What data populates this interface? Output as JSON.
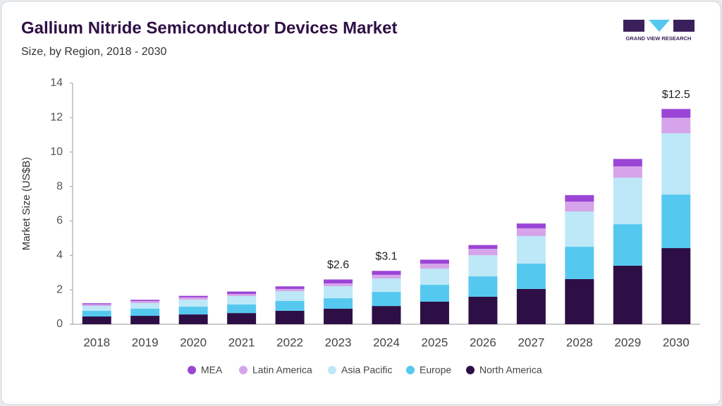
{
  "chart_data": {
    "type": "stacked_bar",
    "title": "Gallium Nitride Semiconductor Devices Market",
    "subtitle": "Size, by Region, 2018 - 2030",
    "y_label": "Market Size (US$B)",
    "logo_text": "GRAND VIEW RESEARCH",
    "categories": [
      "2018",
      "2019",
      "2020",
      "2021",
      "2022",
      "2023",
      "2024",
      "2025",
      "2026",
      "2027",
      "2028",
      "2029",
      "2030"
    ],
    "series": [
      {
        "name": "North America",
        "color": "#2e0f45",
        "values": [
          0.45,
          0.49,
          0.57,
          0.65,
          0.78,
          0.9,
          1.06,
          1.31,
          1.6,
          2.05,
          2.62,
          3.4,
          4.42
        ]
      },
      {
        "name": "Europe",
        "color": "#55c8f0",
        "values": [
          0.33,
          0.41,
          0.45,
          0.5,
          0.57,
          0.61,
          0.82,
          0.98,
          1.18,
          1.47,
          1.88,
          2.41,
          3.11
        ]
      },
      {
        "name": "Asia Pacific",
        "color": "#bde8f7",
        "values": [
          0.28,
          0.33,
          0.41,
          0.49,
          0.57,
          0.7,
          0.78,
          0.94,
          1.23,
          1.6,
          2.05,
          2.7,
          3.56
        ]
      },
      {
        "name": "Latin America",
        "color": "#d6a4ea",
        "values": [
          0.1,
          0.12,
          0.13,
          0.12,
          0.13,
          0.16,
          0.21,
          0.29,
          0.37,
          0.45,
          0.57,
          0.66,
          0.9
        ]
      },
      {
        "name": "MEA",
        "color": "#9b45d6",
        "values": [
          0.06,
          0.07,
          0.09,
          0.14,
          0.15,
          0.23,
          0.23,
          0.23,
          0.22,
          0.28,
          0.38,
          0.43,
          0.51
        ]
      }
    ],
    "annotations": [
      {
        "category": "2023",
        "value": 2.6,
        "label": "$2.6"
      },
      {
        "category": "2024",
        "value": 3.1,
        "label": "$3.1"
      },
      {
        "category": "2030",
        "value": 12.5,
        "label": "$12.5"
      }
    ],
    "ylim": [
      0,
      14
    ],
    "yticks": [
      0,
      2,
      4,
      6,
      8,
      10,
      12,
      14
    ]
  }
}
